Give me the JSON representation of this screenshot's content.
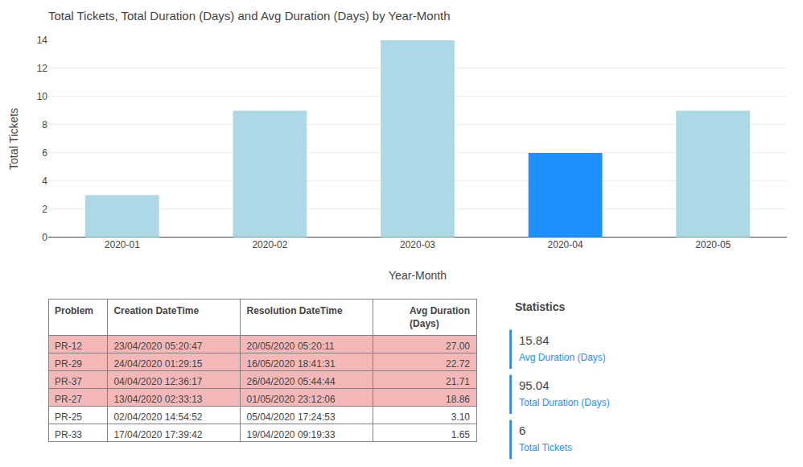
{
  "chart_data": [
    {
      "type": "bar",
      "title": "Total Tickets, Total Duration (Days) and Avg Duration (Days) by Year-Month",
      "categories": [
        "2020-01",
        "2020-02",
        "2020-03",
        "2020-04",
        "2020-05"
      ],
      "values": [
        3,
        9,
        14,
        6,
        9
      ],
      "colors": [
        "#add8e6",
        "#add8e6",
        "#add8e6",
        "#1e90ff",
        "#add8e6"
      ],
      "xlabel": "Year-Month",
      "ylabel": "Total Tickets",
      "ylim": [
        0,
        14
      ],
      "yticks": [
        0,
        2,
        4,
        6,
        8,
        10,
        12,
        14
      ],
      "grid": true
    },
    {
      "type": "table",
      "columns": [
        "Problem",
        "Creation DateTime",
        "Resolution DateTime",
        "Avg Duration (Days)"
      ],
      "rows": [
        [
          "PR-12",
          "23/04/2020 05:20:47",
          "20/05/2020 05:20:11",
          "27.00"
        ],
        [
          "PR-29",
          "24/04/2020 01:29:15",
          "16/05/2020 18:41:31",
          "22.72"
        ],
        [
          "PR-37",
          "04/04/2020 12:36:17",
          "26/04/2020 05:44:44",
          "21.71"
        ],
        [
          "PR-27",
          "13/04/2020 02:33:13",
          "01/05/2020 23:12:06",
          "18.86"
        ],
        [
          "PR-25",
          "02/04/2020 14:54:52",
          "05/04/2020 17:24:53",
          "3.10"
        ],
        [
          "PR-33",
          "17/04/2020 17:39:42",
          "19/04/2020 09:19:33",
          "1.65"
        ]
      ],
      "colors": [
        "#f4b8b8",
        "#f4b8b8",
        "#f4b8b8",
        "#f4b8b8",
        "#ffffff",
        "#ffffff"
      ]
    },
    {
      "type": "stats",
      "title": "Statistics",
      "color": "#1e90ff",
      "categories": [
        "Avg Duration (Days)",
        "Total Duration (Days)",
        "Total Tickets"
      ],
      "values": [
        15.84,
        95.04,
        6
      ]
    }
  ]
}
